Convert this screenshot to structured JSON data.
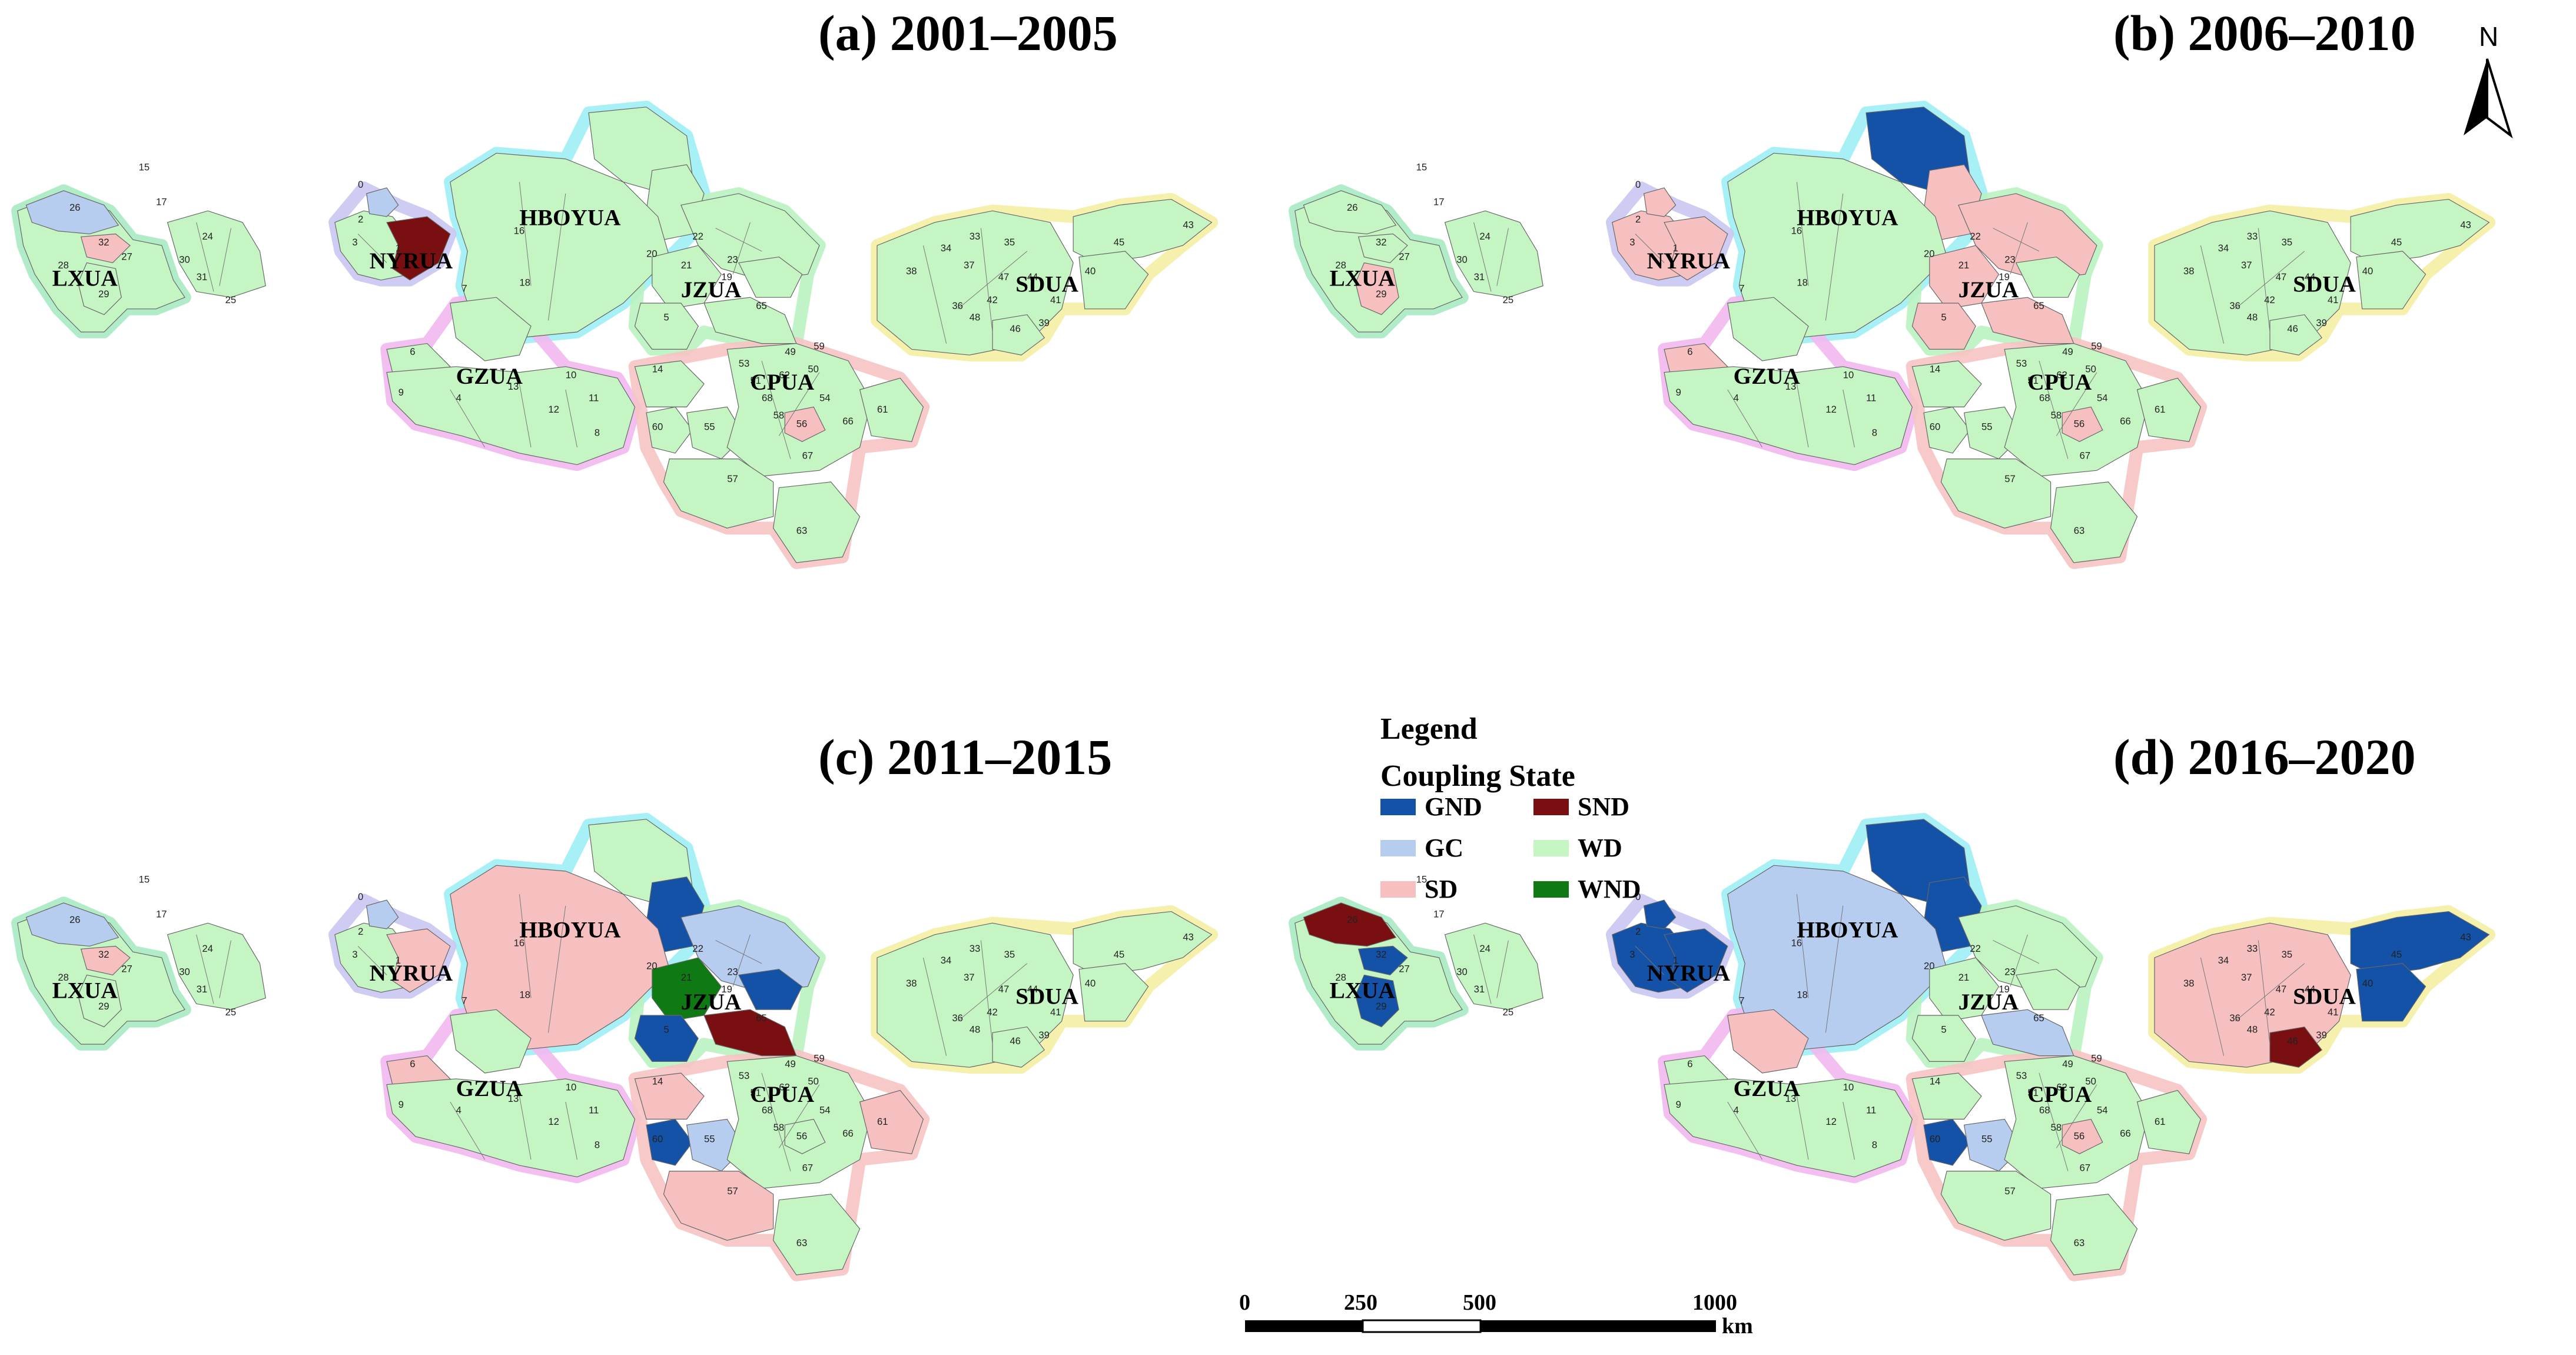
{
  "panels": [
    {
      "id": "a",
      "title": "(a) 2001–2005",
      "colors": {
        "LX_main": "WD",
        "LX_26": "GC",
        "LX_32": "SD",
        "HB_15": "WD",
        "HB_17": "WD",
        "HB_main": "WD",
        "NY_main": "WD",
        "NY_core": "SND",
        "NY_0": "GC",
        "JZ_main": "WD",
        "JZ_20": "WD",
        "JZ_19": "WD",
        "JZ_65": "WD",
        "JZ_5": "WD",
        "GZ_main": "WD",
        "GZ_7": "WD",
        "GZ_6": "WD",
        "CP_main": "WD",
        "CP_56": "SD",
        "CP_57": "WD",
        "CP_63": "WD",
        "CP_61": "WD",
        "CP_14": "WD",
        "CP_55": "WD",
        "CP_60": "WD",
        "SD_main": "WD",
        "SD_east": "WD",
        "SD_39": "WD",
        "WL_29": "WD"
      }
    },
    {
      "id": "b",
      "title": "(b) 2006–2010",
      "colors": {
        "LX_main": "WD",
        "LX_26": "WD",
        "LX_32": "WD",
        "HB_15": "GND",
        "HB_17": "SD",
        "HB_main": "WD",
        "NY_main": "SD",
        "NY_core": "SD",
        "NY_0": "SD",
        "JZ_main": "SD",
        "JZ_20": "SD",
        "JZ_19": "WD",
        "JZ_65": "SD",
        "JZ_5": "SD",
        "GZ_main": "WD",
        "GZ_7": "WD",
        "GZ_6": "SD",
        "CP_main": "WD",
        "CP_56": "SD",
        "CP_57": "WD",
        "CP_63": "WD",
        "CP_61": "WD",
        "CP_14": "WD",
        "CP_55": "WD",
        "CP_60": "WD",
        "SD_main": "WD",
        "SD_east": "WD",
        "SD_39": "WD",
        "WL_29": "SD"
      }
    },
    {
      "id": "c",
      "title": "(c) 2011–2015",
      "colors": {
        "LX_main": "WD",
        "LX_26": "GC",
        "LX_32": "SD",
        "HB_15": "WD",
        "HB_17": "GND",
        "HB_main": "SD",
        "NY_main": "WD",
        "NY_core": "SD",
        "NY_0": "GC",
        "JZ_main": "GC",
        "JZ_20": "WND",
        "JZ_19": "GND",
        "JZ_65": "SND",
        "JZ_5": "GND",
        "GZ_main": "WD",
        "GZ_7": "WD",
        "GZ_6": "SD",
        "CP_main": "WD",
        "CP_56": "WD",
        "CP_57": "SD",
        "CP_63": "WD",
        "CP_61": "SD",
        "CP_14": "SD",
        "CP_55": "GC",
        "CP_60": "GND",
        "SD_main": "WD",
        "SD_east": "WD",
        "SD_39": "WD",
        "WL_29": "WD"
      }
    },
    {
      "id": "d",
      "title": "(d) 2016–2020",
      "colors": {
        "LX_main": "WD",
        "LX_26": "SND",
        "LX_32": "GND",
        "HB_15": "GND",
        "HB_17": "GND",
        "HB_main": "GC",
        "NY_main": "GND",
        "NY_core": "GND",
        "NY_0": "GND",
        "JZ_main": "WD",
        "JZ_20": "WD",
        "JZ_19": "WD",
        "JZ_65": "GC",
        "JZ_5": "WD",
        "GZ_main": "WD",
        "GZ_7": "SD",
        "GZ_6": "WD",
        "CP_main": "WD",
        "CP_56": "SD",
        "CP_57": "WD",
        "CP_63": "WD",
        "CP_61": "WD",
        "CP_14": "WD",
        "CP_55": "GC",
        "CP_60": "GND",
        "SD_main": "SD",
        "SD_east": "GND",
        "SD_39": "SND",
        "WL_29": "GND"
      }
    }
  ],
  "ua_labels": [
    "HBOYUA",
    "NYRUA",
    "LXUA",
    "JZUA",
    "GZUA",
    "CPUA",
    "SDUA"
  ],
  "legend": {
    "title": "Legend",
    "subtitle": "Coupling State",
    "items": [
      {
        "key": "GND",
        "label": "GND",
        "color": "#1452a8"
      },
      {
        "key": "SND",
        "label": "SND",
        "color": "#7a0f12"
      },
      {
        "key": "GC",
        "label": "GC",
        "color": "#b7cdf0"
      },
      {
        "key": "WD",
        "label": "WD",
        "color": "#c6f5c4"
      },
      {
        "key": "SD",
        "label": "SD",
        "color": "#f6c0c0"
      },
      {
        "key": "WND",
        "label": "WND",
        "color": "#0f7a14"
      }
    ]
  },
  "ua_border_colors": {
    "HBOYUA": "#9df0f5",
    "NYRUA": "#c9c6f2",
    "LXUA": "#a8eac2",
    "JZUA": "#b9f2c0",
    "GZUA": "#f2b8f0",
    "CPUA": "#f6c3c3",
    "SDUA": "#f4f0a4"
  },
  "scale_bar": {
    "ticks": [
      "0",
      "250",
      "500",
      "1000"
    ],
    "unit": "km"
  },
  "north_arrow": {
    "label": "N"
  }
}
